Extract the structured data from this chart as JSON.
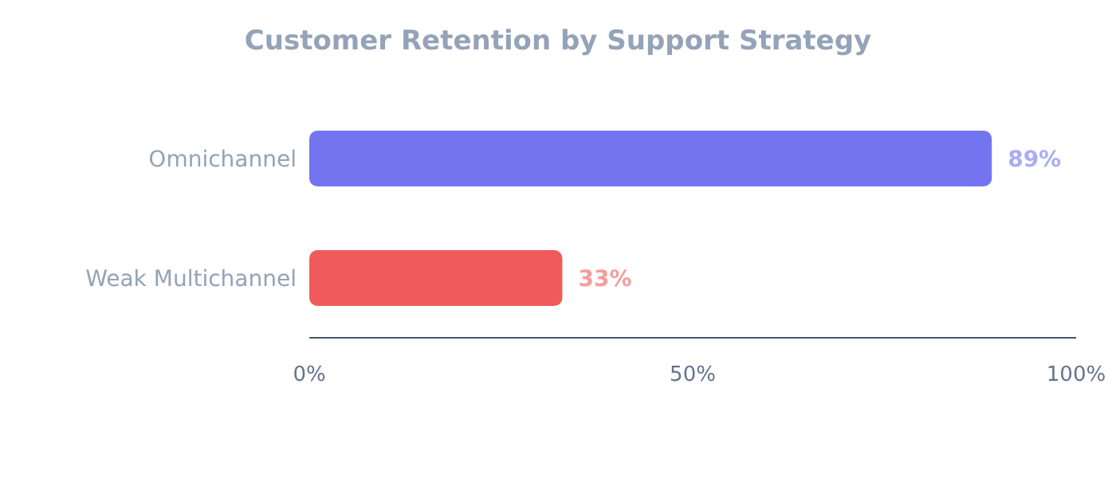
{
  "chart_data": {
    "type": "bar",
    "orientation": "horizontal",
    "title": "Customer Retention by Support Strategy",
    "categories": [
      "Omnichannel",
      "Weak Multichannel"
    ],
    "values": [
      89,
      33
    ],
    "colors": [
      "#7375f0",
      "#f15a5a"
    ],
    "value_labels": [
      "89%",
      "33%"
    ],
    "xlim": [
      0,
      100
    ],
    "xticks": [
      {
        "value": 0,
        "label": "0%"
      },
      {
        "value": 50,
        "label": "50%"
      },
      {
        "value": 100,
        "label": "100%"
      }
    ]
  }
}
